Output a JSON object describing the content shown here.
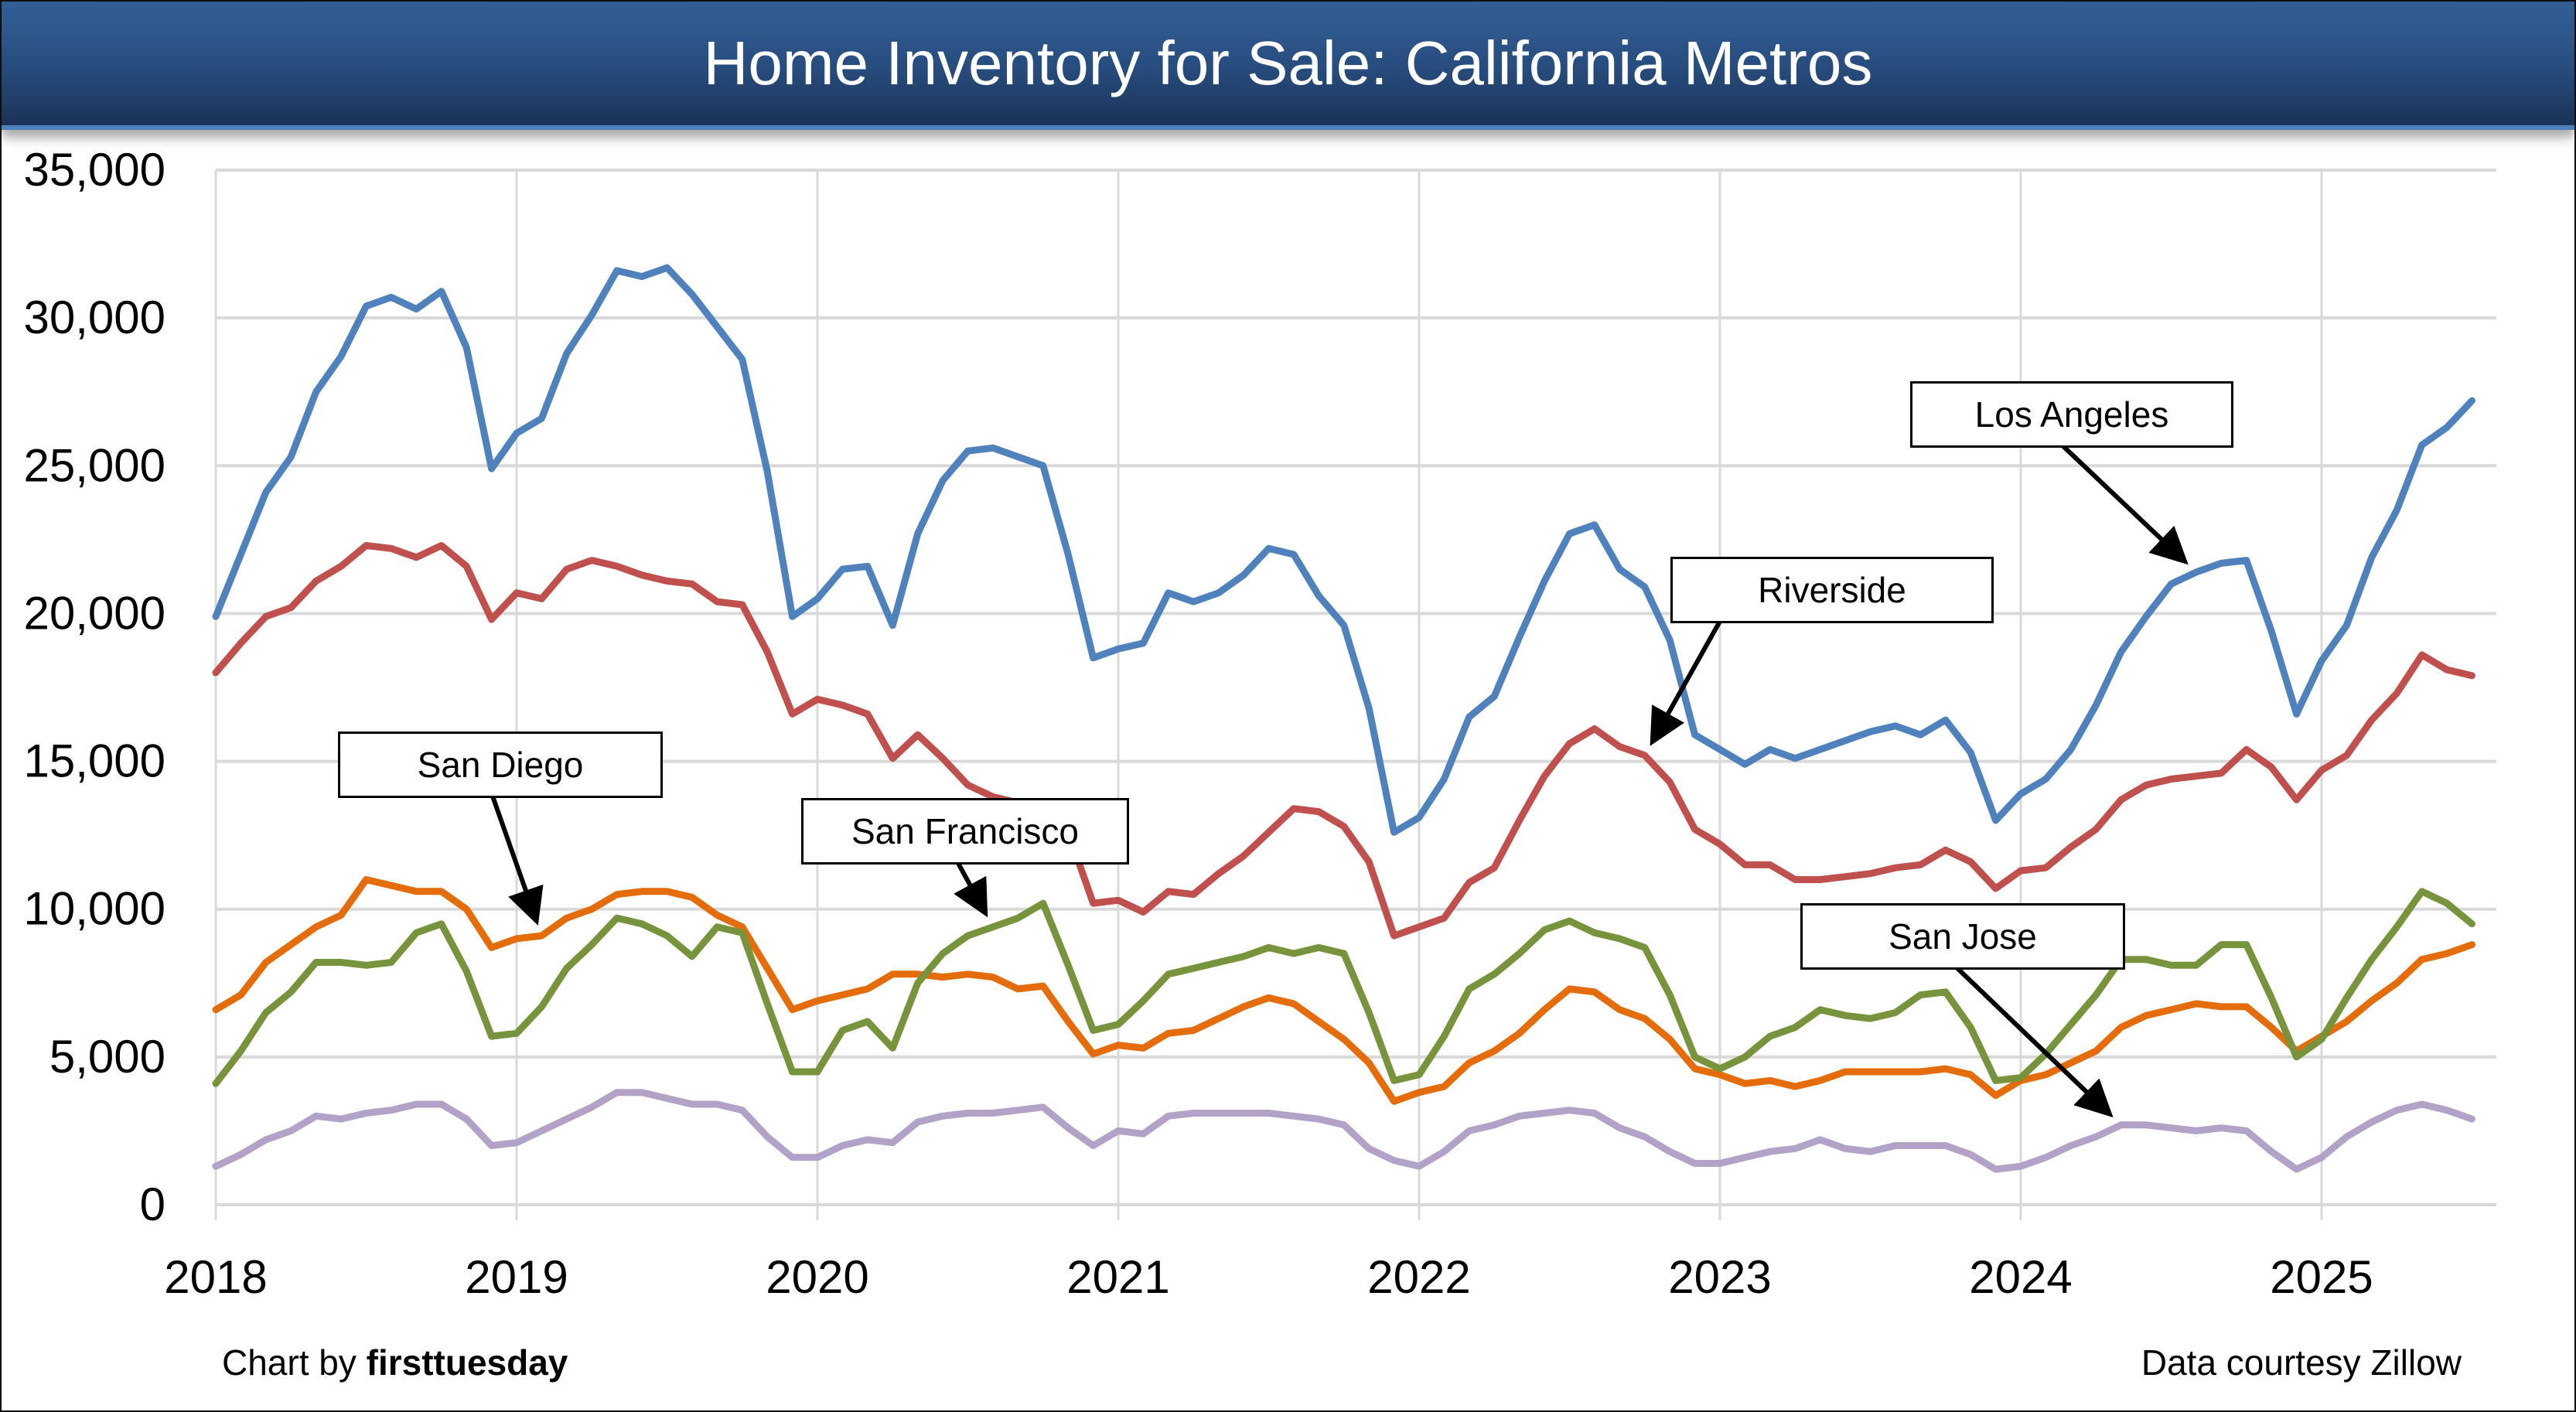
{
  "header": {
    "title": "Home Inventory for Sale: California Metros"
  },
  "footer": {
    "credit_prefix": "Chart by ",
    "credit_brand": "firsttuesday",
    "source": "Data courtesy Zillow"
  },
  "chart_data": {
    "type": "line",
    "title": "Home Inventory for Sale: California Metros",
    "xlabel": "",
    "ylabel": "",
    "x_start": "2018-01",
    "x_frequency": "monthly",
    "x_ticks": [
      "2018",
      "2019",
      "2020",
      "2021",
      "2022",
      "2023",
      "2024",
      "2025"
    ],
    "y_ticks": [
      "0",
      "5,000",
      "10,000",
      "15,000",
      "20,000",
      "25,000",
      "30,000",
      "35,000"
    ],
    "ylim": [
      0,
      35000
    ],
    "grid": true,
    "legend": "inline annotations",
    "series": [
      {
        "name": "Los Angeles",
        "color": "#4f81bd",
        "values": [
          19900,
          22000,
          24100,
          25300,
          27500,
          28700,
          30400,
          30700,
          30300,
          30900,
          29000,
          24900,
          26100,
          26600,
          28800,
          30100,
          31600,
          31400,
          31700,
          30800,
          29700,
          28600,
          24800,
          19900,
          20500,
          21500,
          21600,
          19600,
          22700,
          24500,
          25500,
          25600,
          25300,
          25000,
          22000,
          18500,
          18800,
          19000,
          20700,
          20400,
          20700,
          21300,
          22200,
          22000,
          20600,
          19600,
          16800,
          12600,
          13100,
          14400,
          16500,
          17200,
          19200,
          21100,
          22700,
          23000,
          21500,
          20900,
          19100,
          15900,
          15400,
          14900,
          15400,
          15100,
          15400,
          15700,
          16000,
          16200,
          15900,
          16400,
          15300,
          13000,
          13900,
          14400,
          15400,
          16900,
          18700,
          19900,
          21000,
          21400,
          21700,
          21800,
          19400,
          16600,
          18400,
          19600,
          21900,
          23500,
          25700,
          26300,
          27200
        ]
      },
      {
        "name": "Riverside",
        "color": "#c0504d",
        "values": [
          18000,
          19000,
          19900,
          20200,
          21100,
          21600,
          22300,
          22200,
          21900,
          22300,
          21600,
          19800,
          20700,
          20500,
          21500,
          21800,
          21600,
          21300,
          21100,
          21000,
          20400,
          20300,
          18700,
          16600,
          17100,
          16900,
          16600,
          15100,
          15900,
          15100,
          14200,
          13800,
          13600,
          13400,
          12600,
          10200,
          10300,
          9900,
          10600,
          10500,
          11200,
          11800,
          12600,
          13400,
          13300,
          12800,
          11600,
          9100,
          9400,
          9700,
          10900,
          11400,
          13000,
          14500,
          15600,
          16100,
          15500,
          15200,
          14300,
          12700,
          12200,
          11500,
          11500,
          11000,
          11000,
          11100,
          11200,
          11400,
          11500,
          12000,
          11600,
          10700,
          11300,
          11400,
          12100,
          12700,
          13700,
          14200,
          14400,
          14500,
          14600,
          15400,
          14800,
          13700,
          14700,
          15200,
          16400,
          17300,
          18600,
          18100,
          17900
        ]
      },
      {
        "name": "San Diego",
        "color": "#e46c0a",
        "values": [
          6600,
          7100,
          8200,
          8800,
          9400,
          9800,
          11000,
          10800,
          10600,
          10600,
          10000,
          8700,
          9000,
          9100,
          9700,
          10000,
          10500,
          10600,
          10600,
          10400,
          9800,
          9400,
          8000,
          6600,
          6900,
          7100,
          7300,
          7800,
          7800,
          7700,
          7800,
          7700,
          7300,
          7400,
          6200,
          5100,
          5400,
          5300,
          5800,
          5900,
          6300,
          6700,
          7000,
          6800,
          6200,
          5600,
          4800,
          3500,
          3800,
          4000,
          4800,
          5200,
          5800,
          6600,
          7300,
          7200,
          6600,
          6300,
          5600,
          4600,
          4400,
          4100,
          4200,
          4000,
          4200,
          4500,
          4500,
          4500,
          4500,
          4600,
          4400,
          3700,
          4200,
          4400,
          4800,
          5200,
          6000,
          6400,
          6600,
          6800,
          6700,
          6700,
          6000,
          5200,
          5700,
          6200,
          6900,
          7500,
          8300,
          8500,
          8800
        ]
      },
      {
        "name": "San Francisco",
        "color": "#77933c",
        "values": [
          4100,
          5200,
          6500,
          7200,
          8200,
          8200,
          8100,
          8200,
          9200,
          9500,
          7900,
          5700,
          5800,
          6700,
          8000,
          8800,
          9700,
          9500,
          9100,
          8400,
          9400,
          9200,
          6800,
          4500,
          4500,
          5900,
          6200,
          5300,
          7500,
          8500,
          9100,
          9400,
          9700,
          10200,
          8100,
          5900,
          6100,
          6900,
          7800,
          8000,
          8200,
          8400,
          8700,
          8500,
          8700,
          8500,
          6500,
          4200,
          4400,
          5700,
          7300,
          7800,
          8500,
          9300,
          9600,
          9200,
          9000,
          8700,
          7100,
          5000,
          4600,
          5000,
          5700,
          6000,
          6600,
          6400,
          6300,
          6500,
          7100,
          7200,
          6000,
          4200,
          4300,
          5100,
          6100,
          7100,
          8300,
          8300,
          8100,
          8100,
          8800,
          8800,
          7000,
          5000,
          5600,
          7000,
          8300,
          9400,
          10600,
          10200,
          9500
        ]
      },
      {
        "name": "San Jose",
        "color": "#b3a2c7",
        "values": [
          1300,
          1700,
          2200,
          2500,
          3000,
          2900,
          3100,
          3200,
          3400,
          3400,
          2900,
          2000,
          2100,
          2500,
          2900,
          3300,
          3800,
          3800,
          3600,
          3400,
          3400,
          3200,
          2300,
          1600,
          1600,
          2000,
          2200,
          2100,
          2800,
          3000,
          3100,
          3100,
          3200,
          3300,
          2600,
          2000,
          2500,
          2400,
          3000,
          3100,
          3100,
          3100,
          3100,
          3000,
          2900,
          2700,
          1900,
          1500,
          1300,
          1800,
          2500,
          2700,
          3000,
          3100,
          3200,
          3100,
          2600,
          2300,
          1800,
          1400,
          1400,
          1600,
          1800,
          1900,
          2200,
          1900,
          1800,
          2000,
          2000,
          2000,
          1700,
          1200,
          1300,
          1600,
          2000,
          2300,
          2700,
          2700,
          2600,
          2500,
          2600,
          2500,
          1800,
          1200,
          1600,
          2300,
          2800,
          3200,
          3400,
          3200,
          2900
        ]
      }
    ],
    "annotations": [
      {
        "label": "Los Angeles",
        "target_series": "Los Angeles",
        "target_index": 79
      },
      {
        "label": "Riverside",
        "target_series": "Riverside",
        "target_index": 57
      },
      {
        "label": "San Diego",
        "target_series": "San Diego",
        "target_index": 13
      },
      {
        "label": "San Francisco",
        "target_series": "San Francisco",
        "target_index": 31
      },
      {
        "label": "San Jose",
        "target_series": "San Jose",
        "target_index": 76
      }
    ]
  }
}
